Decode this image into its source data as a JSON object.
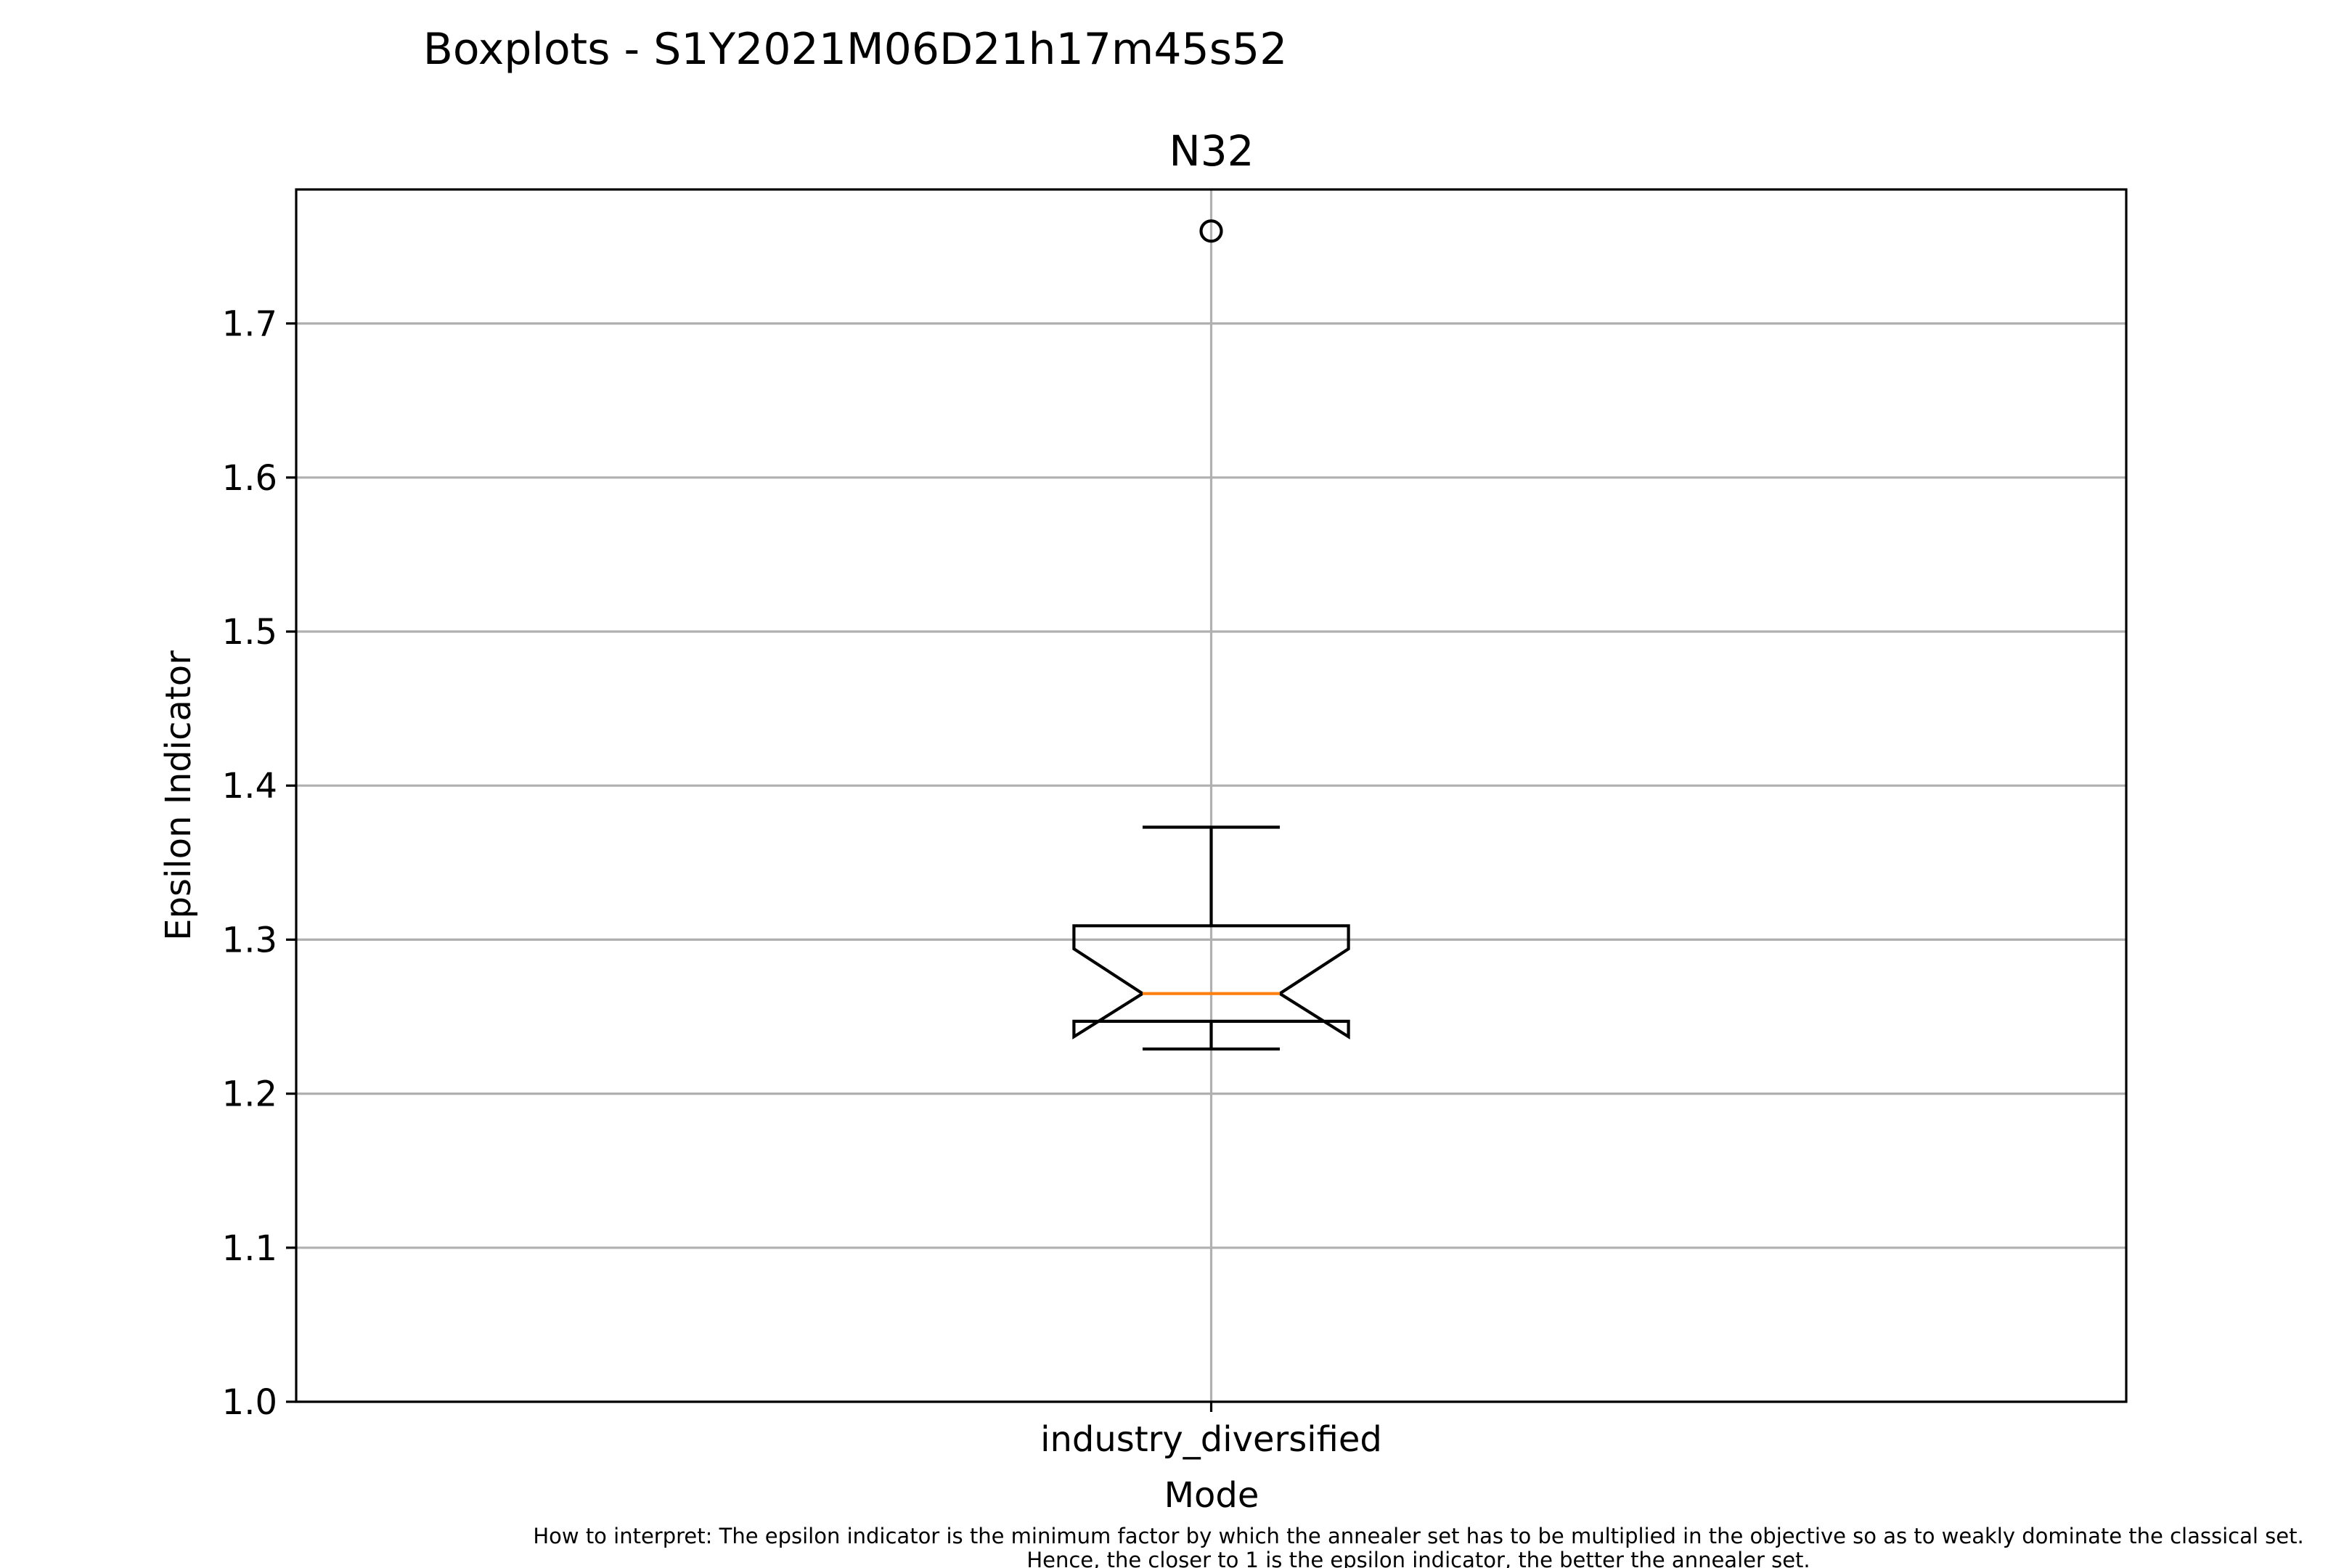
{
  "figure": {
    "suptitle": "Boxplots - S1Y2021M06D21h17m45s52",
    "note_line1": "How to interpret: The epsilon indicator is the minimum factor by which the annealer set has to be multiplied in the objective so as to weakly dominate the classical set.",
    "note_line2": "Hence, the closer to 1 is the epsilon indicator, the better the annealer set."
  },
  "chart_data": {
    "type": "boxplot",
    "title": "N32",
    "xlabel": "Mode",
    "ylabel": "Epsilon Indicator",
    "ylim": [
      1.0,
      1.787
    ],
    "yticks": [
      1.0,
      1.1,
      1.2,
      1.3,
      1.4,
      1.5,
      1.6,
      1.7
    ],
    "ytick_labels": [
      "1.0",
      "1.1",
      "1.2",
      "1.3",
      "1.4",
      "1.5",
      "1.6",
      "1.7"
    ],
    "grid": true,
    "notched": true,
    "categories": [
      "industry_diversified"
    ],
    "boxes": [
      {
        "label": "industry_diversified",
        "whisker_low": 1.229,
        "q1": 1.247,
        "median": 1.265,
        "q3": 1.309,
        "whisker_high": 1.373,
        "notch_low": 1.237,
        "notch_high": 1.294,
        "fliers": [
          1.76
        ]
      }
    ],
    "colors": {
      "box": "#000000",
      "median": "#ff7f0e",
      "grid": "#b0b0b0"
    }
  }
}
